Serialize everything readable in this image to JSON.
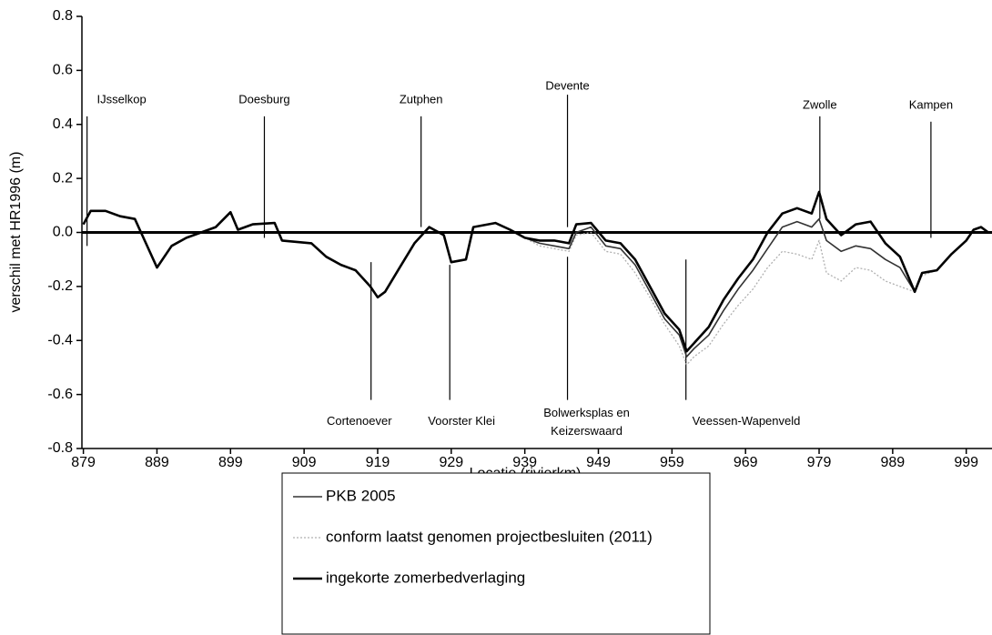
{
  "chart_data": {
    "type": "line",
    "xlabel": "Locatie (rivierkm)",
    "ylabel": "verschil met HR1996 (m)",
    "xlim": [
      878.8,
      1002.5
    ],
    "xticks": [
      879,
      889,
      899,
      909,
      919,
      929,
      939,
      949,
      959,
      969,
      979,
      989,
      999
    ],
    "ylim": [
      -0.8,
      0.8
    ],
    "yticks": [
      0.8,
      0.6,
      0.4,
      0.2,
      {
        "value": 0,
        "label": "0.0"
      },
      -0.2,
      -0.4,
      -0.6,
      -0.8
    ],
    "x": [
      879,
      880,
      882,
      884,
      886,
      887,
      889,
      891,
      893,
      895,
      897,
      899,
      900,
      902,
      905,
      906,
      910,
      912,
      914,
      916,
      918,
      919,
      920,
      922,
      924,
      926,
      928,
      929,
      931,
      932,
      935,
      937,
      939,
      941,
      943,
      945,
      946,
      948,
      950,
      952,
      954,
      956,
      958,
      960,
      961,
      962,
      964,
      966,
      968,
      970,
      972,
      974,
      976,
      978,
      979,
      980,
      982,
      984,
      986,
      988,
      990,
      992,
      993,
      995,
      997,
      999,
      1000,
      1001,
      1002
    ],
    "series": [
      {
        "name": "PKB 2005",
        "color": "#333333",
        "values": [
          0.03,
          0.08,
          0.08,
          0.06,
          0.05,
          -0.01,
          -0.13,
          -0.05,
          -0.02,
          0.0,
          0.02,
          0.075,
          0.01,
          0.03,
          0.035,
          -0.03,
          -0.04,
          -0.09,
          -0.12,
          -0.14,
          -0.2,
          -0.24,
          -0.22,
          -0.13,
          -0.04,
          0.02,
          -0.01,
          -0.11,
          -0.1,
          0.02,
          0.035,
          0.01,
          -0.02,
          -0.04,
          -0.05,
          -0.06,
          0.0,
          0.02,
          -0.05,
          -0.06,
          -0.12,
          -0.22,
          -0.32,
          -0.38,
          -0.46,
          -0.43,
          -0.38,
          -0.29,
          -0.21,
          -0.14,
          -0.06,
          0.02,
          0.04,
          0.02,
          0.05,
          -0.03,
          -0.07,
          -0.05,
          -0.06,
          -0.1,
          -0.13,
          -0.22,
          -0.15,
          -0.14,
          -0.08,
          -0.03,
          0.01,
          0.02,
          0.0
        ]
      },
      {
        "name": "conform laatst genomen projectbesluiten (2011)",
        "color": "#b0b0b0",
        "values": [
          0.03,
          0.08,
          0.08,
          0.06,
          0.05,
          -0.01,
          -0.13,
          -0.05,
          -0.02,
          0.0,
          0.02,
          0.075,
          0.01,
          0.03,
          0.035,
          -0.03,
          -0.04,
          -0.09,
          -0.12,
          -0.14,
          -0.2,
          -0.24,
          -0.22,
          -0.13,
          -0.04,
          0.02,
          -0.01,
          -0.11,
          -0.1,
          0.02,
          0.035,
          0.01,
          -0.02,
          -0.05,
          -0.06,
          -0.07,
          -0.01,
          0.0,
          -0.07,
          -0.08,
          -0.15,
          -0.24,
          -0.34,
          -0.42,
          -0.49,
          -0.46,
          -0.42,
          -0.34,
          -0.27,
          -0.21,
          -0.13,
          -0.07,
          -0.08,
          -0.1,
          -0.03,
          -0.15,
          -0.18,
          -0.13,
          -0.14,
          -0.18,
          -0.2,
          -0.22,
          -0.16,
          -0.14,
          -0.08,
          -0.03,
          0.01,
          0.02,
          0.0
        ]
      },
      {
        "name": "ingekorte zomerbedverlaging",
        "color": "#000000",
        "values": [
          0.03,
          0.08,
          0.08,
          0.06,
          0.05,
          -0.01,
          -0.13,
          -0.05,
          -0.02,
          0.0,
          0.02,
          0.075,
          0.01,
          0.03,
          0.035,
          -0.03,
          -0.04,
          -0.09,
          -0.12,
          -0.14,
          -0.2,
          -0.24,
          -0.22,
          -0.13,
          -0.04,
          0.02,
          -0.01,
          -0.11,
          -0.1,
          0.02,
          0.035,
          0.01,
          -0.02,
          -0.03,
          -0.03,
          -0.04,
          0.03,
          0.035,
          -0.03,
          -0.04,
          -0.1,
          -0.2,
          -0.3,
          -0.36,
          -0.44,
          -0.41,
          -0.35,
          -0.25,
          -0.17,
          -0.1,
          0.0,
          0.07,
          0.09,
          0.07,
          0.15,
          0.05,
          -0.01,
          0.03,
          0.04,
          -0.04,
          -0.09,
          -0.22,
          -0.15,
          -0.14,
          -0.08,
          -0.03,
          0.01,
          0.02,
          0.0
        ]
      }
    ],
    "annotations": [
      {
        "label": [
          "IJsselkop"
        ],
        "x": 879.5,
        "text_x": 884.2,
        "y": 0.49,
        "line": [
          0.43,
          -0.05
        ]
      },
      {
        "label": [
          "Doesburg"
        ],
        "x": 903.6,
        "text_x": 903.6,
        "y": 0.49,
        "line": [
          0.43,
          -0.02
        ]
      },
      {
        "label": [
          "Zutphen"
        ],
        "x": 924.9,
        "text_x": 924.9,
        "y": 0.49,
        "line": [
          0.43,
          0.02
        ]
      },
      {
        "label": [
          "Devente"
        ],
        "x": 944.8,
        "text_x": 944.8,
        "y": 0.54,
        "line": [
          0.51,
          0.02
        ]
      },
      {
        "label": [
          "Zwolle"
        ],
        "x": 979.1,
        "text_x": 979.1,
        "y": 0.47,
        "line": [
          0.43,
          0.05
        ]
      },
      {
        "label": [
          "Kampen"
        ],
        "x": 994.2,
        "text_x": 994.2,
        "y": 0.47,
        "line": [
          0.41,
          -0.02
        ]
      },
      {
        "label": [
          "Cortenoever"
        ],
        "x": 918.1,
        "text_x": 916.5,
        "y": -0.7,
        "line": [
          -0.11,
          -0.62
        ]
      },
      {
        "label": [
          "Voorster Klei"
        ],
        "x": 928.8,
        "text_x": 930.4,
        "y": -0.7,
        "line": [
          -0.12,
          -0.62
        ]
      },
      {
        "label": [
          "Bolwerksplas en",
          "Keizerswaard"
        ],
        "x": 944.8,
        "text_x": 947.4,
        "y": -0.67,
        "line": [
          -0.09,
          -0.62
        ]
      },
      {
        "label": [
          "Veessen-Wapenveld"
        ],
        "x": 960.9,
        "text_x": 969.1,
        "y": -0.7,
        "line": [
          -0.1,
          -0.62
        ]
      }
    ]
  }
}
